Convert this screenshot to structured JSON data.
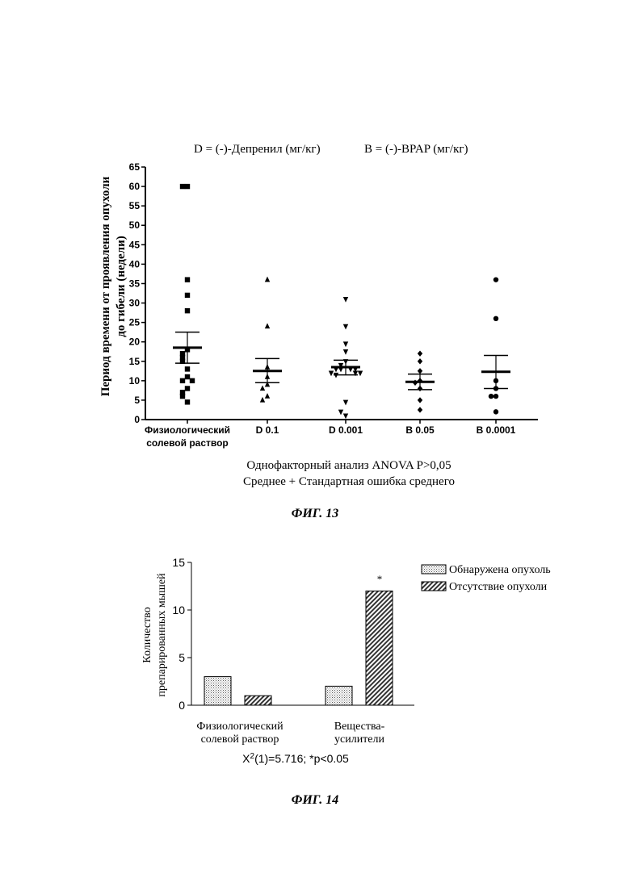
{
  "figure13": {
    "header_left": "D = (-)-Депренил (мг/кг)",
    "header_right": "B = (-)-BPAP (мг/кг)",
    "footer_line1": "Однофакторный анализ ANOVA  P>0,05",
    "footer_line2": "Среднее + Стандартная ошибка среднего",
    "caption": "ФИГ. 13"
  },
  "figure14": {
    "legend_detected": "Обнаружена опухоль",
    "legend_absent": "Отсутствие опухоли",
    "star": "*",
    "stat_text": "X²(1)=5.716; *p<0.05",
    "caption": "ФИГ. 14"
  },
  "chart_data": [
    {
      "type": "scatter",
      "title": "",
      "ylabel_line1": "Период времени от проявления опухоли",
      "ylabel_line2": "до гибели (недели)",
      "xlabel": "",
      "ylim": [
        0,
        65
      ],
      "yticks": [
        0,
        5,
        10,
        15,
        20,
        25,
        30,
        35,
        40,
        45,
        50,
        55,
        60,
        65
      ],
      "grid": false,
      "categories": [
        {
          "line1": "Физиологический",
          "line2": "солевой раствор"
        },
        {
          "line1": "D 0.1",
          "line2": ""
        },
        {
          "line1": "D 0.001",
          "line2": ""
        },
        {
          "line1": "B 0.05",
          "line2": ""
        },
        {
          "line1": "B 0.0001",
          "line2": ""
        }
      ],
      "series": [
        {
          "marker": "square",
          "points": [
            60,
            60,
            36,
            32,
            28,
            18,
            17,
            16,
            15,
            13,
            11,
            10,
            10,
            8,
            7,
            6,
            4.5
          ],
          "mean": 18.5,
          "sem_upper": 22.5,
          "sem_lower": 14.5
        },
        {
          "marker": "triangle-up",
          "points": [
            36,
            24,
            13.5,
            11,
            9,
            8,
            6,
            5
          ],
          "mean": 12.5,
          "sem_upper": 15.7,
          "sem_lower": 9.5
        },
        {
          "marker": "triangle-down",
          "points": [
            31,
            24,
            19.5,
            17.5,
            15,
            14,
            13,
            13,
            13,
            13,
            12,
            12,
            12,
            11.5,
            4.5,
            1,
            2
          ],
          "mean": 13.5,
          "sem_upper": 15.3,
          "sem_lower": 11.5
        },
        {
          "marker": "diamond",
          "points": [
            17,
            15,
            12.5,
            10,
            9.5,
            8,
            5,
            2.5
          ],
          "mean": 9.7,
          "sem_upper": 11.7,
          "sem_lower": 7.7
        },
        {
          "marker": "circle",
          "points": [
            36,
            26,
            10,
            8,
            6,
            6,
            2
          ],
          "mean": 12.3,
          "sem_upper": 16.5,
          "sem_lower": 8.0
        }
      ]
    },
    {
      "type": "bar",
      "title": "",
      "ylabel_line1": "Количество",
      "ylabel_line2": "препарированных мышей",
      "xlabel": "",
      "ylim": [
        0,
        15
      ],
      "yticks": [
        0,
        5,
        10,
        15
      ],
      "grid": false,
      "legend_position": "top-right",
      "categories": [
        {
          "line1": "Физиологический",
          "line2": "солевой раствор"
        },
        {
          "line1": "Вещества-",
          "line2": "усилители"
        }
      ],
      "series": [
        {
          "name": "Обнаружена опухоль",
          "values": [
            3,
            2
          ],
          "pattern": "dotted"
        },
        {
          "name": "Отсутствие опухоли",
          "values": [
            1,
            12
          ],
          "pattern": "hatched"
        }
      ]
    }
  ]
}
